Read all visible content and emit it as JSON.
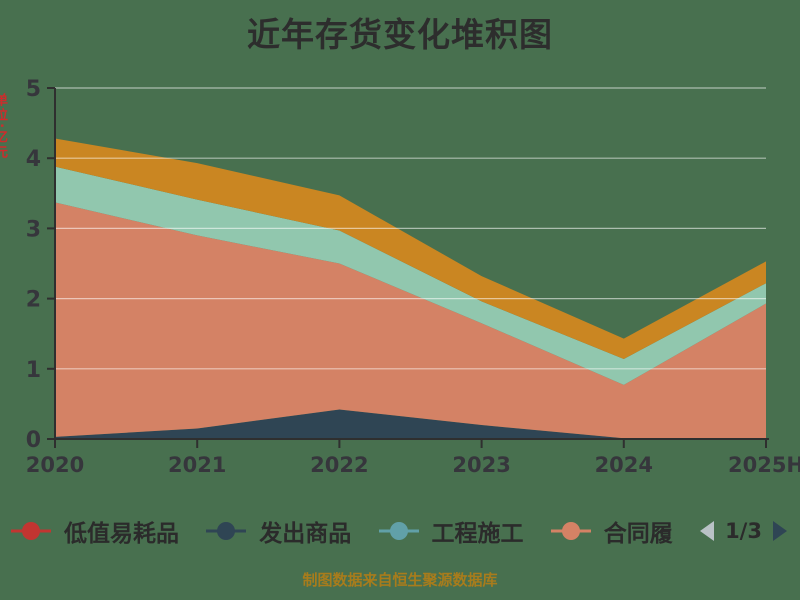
{
  "page": {
    "title": "近年存货变化堆积图",
    "caption": "制图数据来自恒生聚源数据库",
    "background_color": "#48704F",
    "title_color": "#2d2d2d",
    "caption_color": "#A87C1C"
  },
  "y_axis_side_label": {
    "text": "单位:亿元",
    "color": "#cf2b2b",
    "clipped": true
  },
  "chart_data": {
    "type": "area",
    "stacked": true,
    "title": "近年存货变化堆积图",
    "x_categories": [
      "2020",
      "2021",
      "2022",
      "2023",
      "2024",
      "2025H"
    ],
    "y_axis": {
      "min": 0,
      "max": 5,
      "ticks": [
        0,
        1,
        2,
        3,
        4,
        5
      ]
    },
    "grid": true,
    "gridline_color": "rgba(255,255,255,0.55)",
    "axis_color": "#2f2f2f",
    "tick_label_color": "#36363c",
    "series": [
      {
        "name": "发出商品",
        "color": "#2f4554",
        "legend_label_visible": true,
        "values": [
          0.03,
          0.15,
          0.42,
          0.2,
          0.01,
          0.0
        ]
      },
      {
        "name": "合同履",
        "color": "#d48265",
        "legend_label_visible": true,
        "values": [
          3.34,
          2.75,
          2.08,
          1.45,
          0.76,
          1.93
        ]
      },
      {
        "name": "",
        "color": "#91c7ae",
        "legend_label_visible": false,
        "values": [
          0.51,
          0.51,
          0.47,
          0.31,
          0.37,
          0.29
        ]
      },
      {
        "name": "",
        "color": "#ca8622",
        "legend_label_visible": false,
        "values": [
          0.4,
          0.52,
          0.5,
          0.36,
          0.29,
          0.31
        ]
      }
    ],
    "stacked_totals": [
      4.28,
      3.93,
      3.47,
      2.32,
      1.43,
      2.53
    ],
    "legend_position": "bottom"
  },
  "legend": {
    "items": [
      {
        "label": "低值易耗品",
        "color": "#c23531"
      },
      {
        "label": "发出商品",
        "color": "#2f4554"
      },
      {
        "label": "工程施工",
        "color": "#61a0a8"
      },
      {
        "label": "合同履",
        "color": "#d48265"
      }
    ],
    "pagination": {
      "text": "1/3",
      "prev_color": "#b9c2c6",
      "next_color": "#2f4554"
    }
  }
}
